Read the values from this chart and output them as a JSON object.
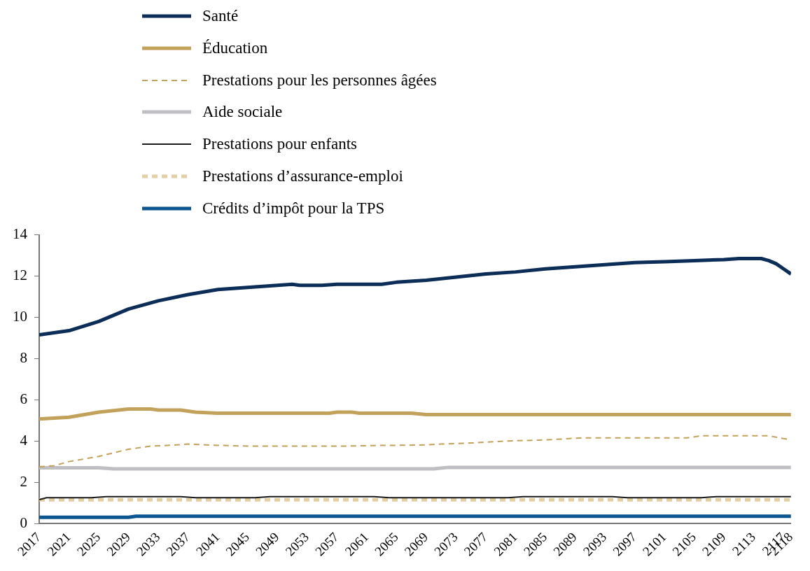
{
  "chart_data": {
    "type": "line",
    "legend": "top",
    "grid": false,
    "marker": "none",
    "xlim": [
      2017,
      2118
    ],
    "xticks": [
      2017,
      2021,
      2025,
      2029,
      2033,
      2037,
      2041,
      2045,
      2049,
      2053,
      2057,
      2061,
      2065,
      2069,
      2073,
      2077,
      2081,
      2085,
      2089,
      2093,
      2097,
      2101,
      2105,
      2109,
      2113,
      2117,
      2118
    ],
    "ylim": [
      0,
      14
    ],
    "yticks": [
      0,
      2,
      4,
      6,
      8,
      10,
      12,
      14
    ],
    "series": [
      {
        "name": "Santé",
        "color": "#0b2d57",
        "line_style": "solid",
        "x": [
          2017,
          2021,
          2025,
          2029,
          2033,
          2037,
          2041,
          2045,
          2049,
          2051,
          2052,
          2055,
          2057,
          2063,
          2065,
          2069,
          2073,
          2077,
          2081,
          2085,
          2089,
          2093,
          2097,
          2101,
          2105,
          2109,
          2111,
          2114,
          2115,
          2116,
          2117,
          2118
        ],
        "values": [
          9.15,
          9.35,
          9.8,
          10.4,
          10.8,
          11.1,
          11.35,
          11.45,
          11.55,
          11.6,
          11.55,
          11.55,
          11.6,
          11.6,
          11.7,
          11.8,
          11.95,
          12.1,
          12.2,
          12.35,
          12.45,
          12.55,
          12.65,
          12.7,
          12.75,
          12.8,
          12.85,
          12.85,
          12.75,
          12.6,
          12.35,
          12.1
        ]
      },
      {
        "name": "Éducation",
        "color": "#c2a25a",
        "line_style": "solid",
        "x": [
          2017,
          2021,
          2025,
          2029,
          2032,
          2033,
          2036,
          2038,
          2041,
          2056,
          2057,
          2059,
          2060,
          2067,
          2069,
          2118
        ],
        "values": [
          5.07,
          5.15,
          5.4,
          5.55,
          5.55,
          5.5,
          5.5,
          5.4,
          5.35,
          5.35,
          5.4,
          5.4,
          5.35,
          5.35,
          5.28,
          5.28
        ]
      },
      {
        "name": "Prestations pour les personnes âgées",
        "color": "#c2a25a",
        "line_style": "dashed",
        "x": [
          2017,
          2019,
          2021,
          2025,
          2029,
          2032,
          2035,
          2037,
          2040,
          2045,
          2058,
          2062,
          2068,
          2071,
          2075,
          2080,
          2085,
          2090,
          2104,
          2106,
          2115,
          2118
        ],
        "values": [
          2.75,
          2.8,
          3.0,
          3.25,
          3.6,
          3.75,
          3.8,
          3.85,
          3.8,
          3.75,
          3.75,
          3.78,
          3.8,
          3.85,
          3.9,
          4.0,
          4.05,
          4.15,
          4.15,
          4.25,
          4.25,
          4.05
        ]
      },
      {
        "name": "Aide sociale",
        "color": "#bfbfc3",
        "line_style": "solid",
        "x": [
          2017,
          2025,
          2027,
          2070,
          2072,
          2118
        ],
        "values": [
          2.7,
          2.7,
          2.65,
          2.65,
          2.72,
          2.72
        ]
      },
      {
        "name": "Prestations pour enfants",
        "color": "#1a1a1a",
        "line_style": "solid",
        "x": [
          2017,
          2018,
          2024,
          2026,
          2036,
          2038,
          2046,
          2048,
          2062,
          2064,
          2080,
          2082,
          2094,
          2096,
          2106,
          2108,
          2118
        ],
        "values": [
          1.15,
          1.25,
          1.25,
          1.3,
          1.3,
          1.25,
          1.25,
          1.3,
          1.3,
          1.25,
          1.25,
          1.3,
          1.3,
          1.25,
          1.25,
          1.3,
          1.3
        ]
      },
      {
        "name": "Prestations d’assurance-emploi",
        "color": "#e3cfa2",
        "line_style": "dashed",
        "x": [
          2017,
          2118
        ],
        "values": [
          1.15,
          1.15
        ]
      },
      {
        "name": "Crédits d’impôt pour la TPS",
        "color": "#0b5591",
        "line_style": "solid",
        "x": [
          2017,
          2029,
          2030,
          2118
        ],
        "values": [
          0.3,
          0.3,
          0.35,
          0.35
        ]
      }
    ]
  }
}
